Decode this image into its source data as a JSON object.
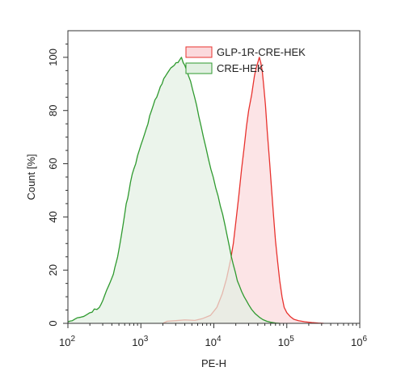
{
  "chart_data": {
    "type": "area",
    "xscale": "log10",
    "xlim": [
      100,
      1000000
    ],
    "ylim": [
      0,
      110
    ],
    "xlabel": "PE-H",
    "ylabel": "Count [%]",
    "x_ticks": [
      {
        "base": "10",
        "exp": "2",
        "value": 100
      },
      {
        "base": "10",
        "exp": "3",
        "value": 1000
      },
      {
        "base": "10",
        "exp": "4",
        "value": 10000
      },
      {
        "base": "10",
        "exp": "5",
        "value": 100000
      },
      {
        "base": "10",
        "exp": "6",
        "value": 1000000
      }
    ],
    "y_ticks": [
      0,
      20,
      40,
      60,
      80,
      100
    ],
    "legend_position": "top-right",
    "series": [
      {
        "name": "GLP-1R-CRE-HEK",
        "stroke": "#e8322e",
        "fill": "#fbd9dc",
        "points": [
          [
            2000,
            0
          ],
          [
            2300,
            0.8
          ],
          [
            3000,
            1
          ],
          [
            4000,
            1.3
          ],
          [
            5500,
            1.1
          ],
          [
            7000,
            1.8
          ],
          [
            9000,
            3
          ],
          [
            11000,
            6
          ],
          [
            13000,
            11
          ],
          [
            15000,
            17
          ],
          [
            17000,
            24
          ],
          [
            18500,
            30
          ],
          [
            20000,
            38
          ],
          [
            22000,
            48
          ],
          [
            24000,
            58
          ],
          [
            26000,
            66
          ],
          [
            28000,
            74
          ],
          [
            30000,
            80
          ],
          [
            33000,
            86
          ],
          [
            36000,
            93
          ],
          [
            38000,
            96
          ],
          [
            40000,
            98
          ],
          [
            42000,
            100
          ],
          [
            44000,
            98
          ],
          [
            46000,
            95
          ],
          [
            48000,
            90
          ],
          [
            51000,
            82
          ],
          [
            54000,
            72
          ],
          [
            58000,
            61
          ],
          [
            62000,
            50
          ],
          [
            66000,
            40
          ],
          [
            70000,
            31
          ],
          [
            75000,
            23
          ],
          [
            80000,
            16
          ],
          [
            86000,
            10
          ],
          [
            92000,
            6
          ],
          [
            100000,
            4
          ],
          [
            112000,
            2.5
          ],
          [
            125000,
            1.5
          ],
          [
            145000,
            1
          ],
          [
            175000,
            0.6
          ],
          [
            220000,
            0.3
          ],
          [
            270000,
            0.1
          ],
          [
            320000,
            0
          ]
        ]
      },
      {
        "name": "CRE-HEK",
        "stroke": "#2f9a2f",
        "fill": "#e2f0e2",
        "points": [
          [
            100,
            0.5
          ],
          [
            105,
            0.8
          ],
          [
            115,
            1
          ],
          [
            125,
            1.6
          ],
          [
            135,
            2.1
          ],
          [
            150,
            2.3
          ],
          [
            165,
            2.6
          ],
          [
            180,
            3.2
          ],
          [
            200,
            4
          ],
          [
            215,
            4.2
          ],
          [
            230,
            5.4
          ],
          [
            250,
            5.2
          ],
          [
            270,
            6
          ],
          [
            285,
            7.2
          ],
          [
            300,
            8.5
          ],
          [
            320,
            10.6
          ],
          [
            340,
            12.5
          ],
          [
            360,
            14
          ],
          [
            380,
            15.5
          ],
          [
            400,
            17
          ],
          [
            420,
            18.5
          ],
          [
            440,
            21
          ],
          [
            460,
            23
          ],
          [
            480,
            25
          ],
          [
            510,
            29
          ],
          [
            540,
            33
          ],
          [
            570,
            37
          ],
          [
            600,
            41
          ],
          [
            630,
            45
          ],
          [
            660,
            47
          ],
          [
            690,
            50
          ],
          [
            720,
            53
          ],
          [
            760,
            56
          ],
          [
            800,
            58
          ],
          [
            850,
            60
          ],
          [
            900,
            63
          ],
          [
            950,
            65
          ],
          [
            1000,
            67
          ],
          [
            1060,
            69
          ],
          [
            1120,
            71
          ],
          [
            1180,
            73
          ],
          [
            1250,
            75
          ],
          [
            1320,
            78
          ],
          [
            1400,
            80
          ],
          [
            1480,
            82
          ],
          [
            1560,
            84
          ],
          [
            1650,
            85
          ],
          [
            1750,
            87
          ],
          [
            1850,
            89
          ],
          [
            1950,
            90
          ],
          [
            2060,
            92
          ],
          [
            2180,
            93
          ],
          [
            2300,
            94
          ],
          [
            2430,
            95
          ],
          [
            2570,
            96
          ],
          [
            2720,
            96.5
          ],
          [
            2870,
            97
          ],
          [
            3040,
            98
          ],
          [
            3220,
            98
          ],
          [
            3400,
            99
          ],
          [
            3600,
            100
          ],
          [
            3800,
            98
          ],
          [
            4000,
            97
          ],
          [
            4250,
            95
          ],
          [
            4500,
            93
          ],
          [
            4800,
            91
          ],
          [
            5100,
            88
          ],
          [
            5450,
            85
          ],
          [
            5800,
            82
          ],
          [
            6200,
            78
          ],
          [
            6700,
            74
          ],
          [
            7200,
            70
          ],
          [
            7800,
            66
          ],
          [
            8400,
            62
          ],
          [
            9100,
            58
          ],
          [
            9800,
            55
          ],
          [
            10600,
            51
          ],
          [
            11400,
            48
          ],
          [
            12300,
            44
          ],
          [
            13200,
            41
          ],
          [
            14200,
            37
          ],
          [
            15200,
            33
          ],
          [
            16300,
            29
          ],
          [
            17400,
            25
          ],
          [
            18500,
            22
          ],
          [
            19800,
            19
          ],
          [
            21000,
            16
          ],
          [
            22500,
            14
          ],
          [
            24000,
            12
          ],
          [
            26000,
            10
          ],
          [
            28000,
            8.5
          ],
          [
            30000,
            7
          ],
          [
            33000,
            5.2
          ],
          [
            37000,
            3.6
          ],
          [
            42000,
            2.3
          ],
          [
            47000,
            1.4
          ],
          [
            53000,
            0.8
          ],
          [
            60000,
            0.4
          ],
          [
            70000,
            0.1
          ],
          [
            80000,
            0
          ]
        ]
      }
    ]
  }
}
